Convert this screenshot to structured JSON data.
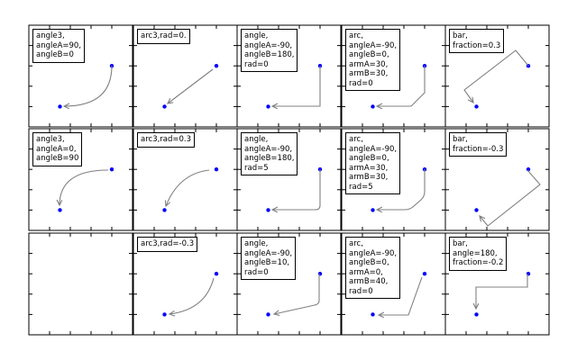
{
  "chart_data": {
    "type": "scatter",
    "layout": "3 rows x 5 columns of annotation demo panels",
    "xlim": [
      0,
      1
    ],
    "ylim": [
      0,
      1
    ],
    "ticks": [
      0.2,
      0.4,
      0.6,
      0.8
    ],
    "tick_labels_shown": false,
    "grid": false,
    "point_color": "#0000ff",
    "arrow_color": "#808080",
    "points": [
      {
        "x": 0.3,
        "y": 0.2
      },
      {
        "x": 0.8,
        "y": 0.6
      }
    ],
    "arrow": {
      "from": {
        "x": 0.8,
        "y": 0.6
      },
      "to": {
        "x": 0.3,
        "y": 0.2
      }
    },
    "panels": [
      {
        "label": "angle3,\nangleA=90,\nangleB=0",
        "style": "angle3"
      },
      {
        "label": "arc3,rad=0.",
        "style": "arc3"
      },
      {
        "label": "angle,\nangleA=-90,\nangleB=180,\nrad=0",
        "style": "angle"
      },
      {
        "label": "arc,\nangleA=-90,\nangleB=0,\narmA=30,\narmB=30,\nrad=0",
        "style": "arc"
      },
      {
        "label": "bar,\nfraction=0.3",
        "style": "bar"
      },
      {
        "label": "angle3,\nangleA=0,\nangleB=90",
        "style": "angle3"
      },
      {
        "label": "arc3,rad=0.3",
        "style": "arc3"
      },
      {
        "label": "angle,\nangleA=-90,\nangleB=180,\nrad=5",
        "style": "angle"
      },
      {
        "label": "arc,\nangleA=-90,\nangleB=0,\narmA=30,\narmB=30,\nrad=5",
        "style": "arc"
      },
      {
        "label": "bar,\nfraction=-0.3",
        "style": "bar"
      },
      {
        "label": "",
        "style": "none"
      },
      {
        "label": "arc3,rad=-0.3",
        "style": "arc3"
      },
      {
        "label": "angle,\nangleA=-90,\nangleB=10,\nrad=0",
        "style": "angle"
      },
      {
        "label": "arc,\nangleA=-90,\nangleB=0,\narmA=0,\narmB=40,\nrad=0",
        "style": "arc"
      },
      {
        "label": "bar,\nangle=180,\nfraction=-0.2",
        "style": "bar"
      }
    ]
  }
}
